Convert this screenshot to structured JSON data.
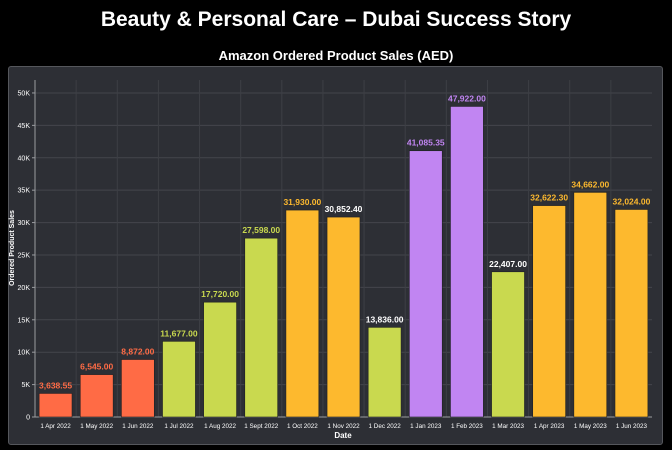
{
  "header": {
    "title": "Beauty & Personal Care – Dubai Success Story"
  },
  "chart_data": {
    "type": "bar",
    "title": "Amazon Ordered Product Sales (AED)",
    "xlabel": "Date",
    "ylabel": "Ordered Product Sales",
    "ylim": [
      0,
      52000
    ],
    "yticks": [
      0,
      5000,
      10000,
      15000,
      20000,
      25000,
      30000,
      35000,
      40000,
      45000,
      50000
    ],
    "ytick_labels": [
      "0",
      "5K",
      "10K",
      "15K",
      "20K",
      "25K",
      "30K",
      "35K",
      "40K",
      "45K",
      "50K"
    ],
    "grid": true,
    "categories": [
      "1 Apr 2022",
      "1 May 2022",
      "1 Jun 2022",
      "1 Jul 2022",
      "1 Aug 2022",
      "1 Sept 2022",
      "1 Oct 2022",
      "1 Nov 2022",
      "1 Dec 2022",
      "1 Jan 2023",
      "1 Feb 2023",
      "1 Mar 2023",
      "1 Apr 2023",
      "1 May 2023",
      "1 Jun 2023"
    ],
    "values": [
      3638.55,
      6545.0,
      8872.0,
      11677.0,
      17720.0,
      27598.0,
      31930.0,
      30852.4,
      13836.0,
      41085.35,
      47922.0,
      22407.0,
      32622.3,
      34662.0,
      32024.0
    ],
    "value_labels": [
      "3,638.55",
      "6,545.00",
      "8,872.00",
      "11,677.00",
      "17,720.00",
      "27,598.00",
      "31,930.00",
      "30,852.40",
      "13,836.00",
      "41,085.35",
      "47,922.00",
      "22,407.00",
      "32,622.30",
      "34,662.00",
      "32,024.00"
    ],
    "bar_colors": [
      "#ff6b45",
      "#ff6b45",
      "#ff6b45",
      "#c9d94f",
      "#c9d94f",
      "#c9d94f",
      "#fdb92e",
      "#fdb92e",
      "#c9d94f",
      "#c185f2",
      "#c185f2",
      "#c9d94f",
      "#fdb92e",
      "#fdb92e",
      "#fdb92e"
    ],
    "label_colors": [
      "#ff6b45",
      "#ff6b45",
      "#ff6b45",
      "#c9d94f",
      "#c9d94f",
      "#c9d94f",
      "#fdb92e",
      "#ffffff",
      "#ffffff",
      "#c185f2",
      "#c185f2",
      "#ffffff",
      "#fdb92e",
      "#fdb92e",
      "#fdb92e"
    ]
  }
}
